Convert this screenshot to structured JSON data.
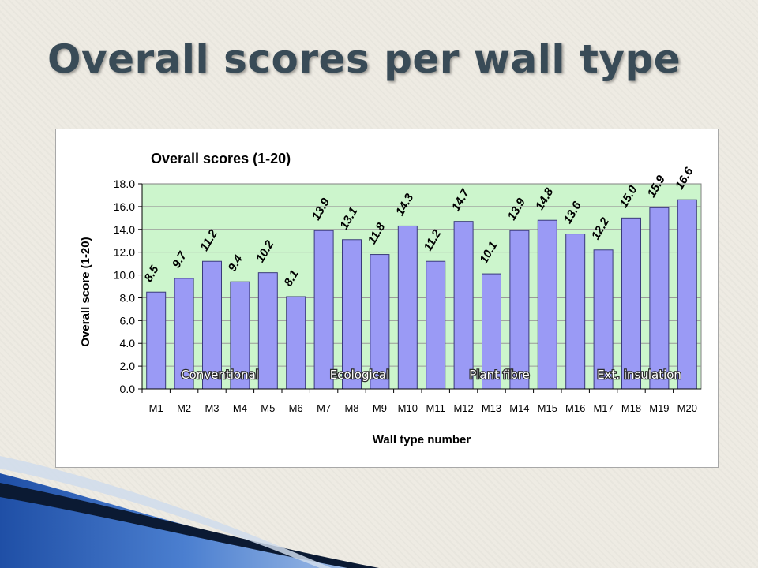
{
  "slide": {
    "title": "Overall scores per wall type"
  },
  "colors": {
    "bar_fill": "#9a9af5",
    "bar_stroke": "#3a3a7a",
    "plot_bg": "#ccf5cc",
    "title_text": "#394b57",
    "group_label_text": "#ffffff"
  },
  "chart_data": {
    "type": "bar",
    "title": "Overall scores (1-20)",
    "xlabel": "Wall type number",
    "ylabel": "Overall score (1-20)",
    "ylim": [
      0,
      18
    ],
    "yticks": [
      "0.0",
      "2.0",
      "4.0",
      "6.0",
      "8.0",
      "10.0",
      "12.0",
      "14.0",
      "16.0",
      "18.0"
    ],
    "grid": true,
    "legend": "none",
    "categories": [
      "M1",
      "M2",
      "M3",
      "M4",
      "M5",
      "M6",
      "M7",
      "M8",
      "M9",
      "M10",
      "M11",
      "M12",
      "M13",
      "M14",
      "M15",
      "M16",
      "M17",
      "M18",
      "M19",
      "M20"
    ],
    "values": [
      8.5,
      9.7,
      11.2,
      9.4,
      10.2,
      8.1,
      13.9,
      13.1,
      11.8,
      14.3,
      11.2,
      14.7,
      10.1,
      13.9,
      14.8,
      13.6,
      12.2,
      15.0,
      15.9,
      16.6
    ],
    "data_labels": [
      "8.5",
      "9.7",
      "11.2",
      "9.4",
      "10.2",
      "8.1",
      "13.9",
      "13.1",
      "11.8",
      "14.3",
      "11.2",
      "14.7",
      "10.1",
      "13.9",
      "14.8",
      "13.6",
      "12.2",
      "15.0",
      "15.9",
      "16.6"
    ],
    "group_labels": [
      "Conventional",
      "Ecological",
      "Plant fibre",
      "Ext. insulation"
    ]
  }
}
